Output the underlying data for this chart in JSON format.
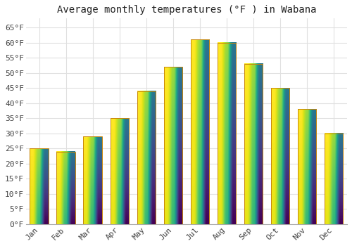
{
  "title": "Average monthly temperatures (°F ) in Wabana",
  "months": [
    "Jan",
    "Feb",
    "Mar",
    "Apr",
    "May",
    "Jun",
    "Jul",
    "Aug",
    "Sep",
    "Oct",
    "Nov",
    "Dec"
  ],
  "values": [
    25,
    24,
    29,
    35,
    44,
    52,
    61,
    60,
    53,
    45,
    38,
    30
  ],
  "bar_color_top": "#FFD966",
  "bar_color_bottom": "#F5A800",
  "bar_edge_color": "#C8860A",
  "ylim": [
    0,
    68
  ],
  "yticks": [
    0,
    5,
    10,
    15,
    20,
    25,
    30,
    35,
    40,
    45,
    50,
    55,
    60,
    65
  ],
  "ytick_labels": [
    "0°F",
    "5°F",
    "10°F",
    "15°F",
    "20°F",
    "25°F",
    "30°F",
    "35°F",
    "40°F",
    "45°F",
    "50°F",
    "55°F",
    "60°F",
    "65°F"
  ],
  "background_color": "#ffffff",
  "grid_color": "#e0e0e0",
  "title_fontsize": 10,
  "tick_fontsize": 8,
  "font_family": "monospace"
}
